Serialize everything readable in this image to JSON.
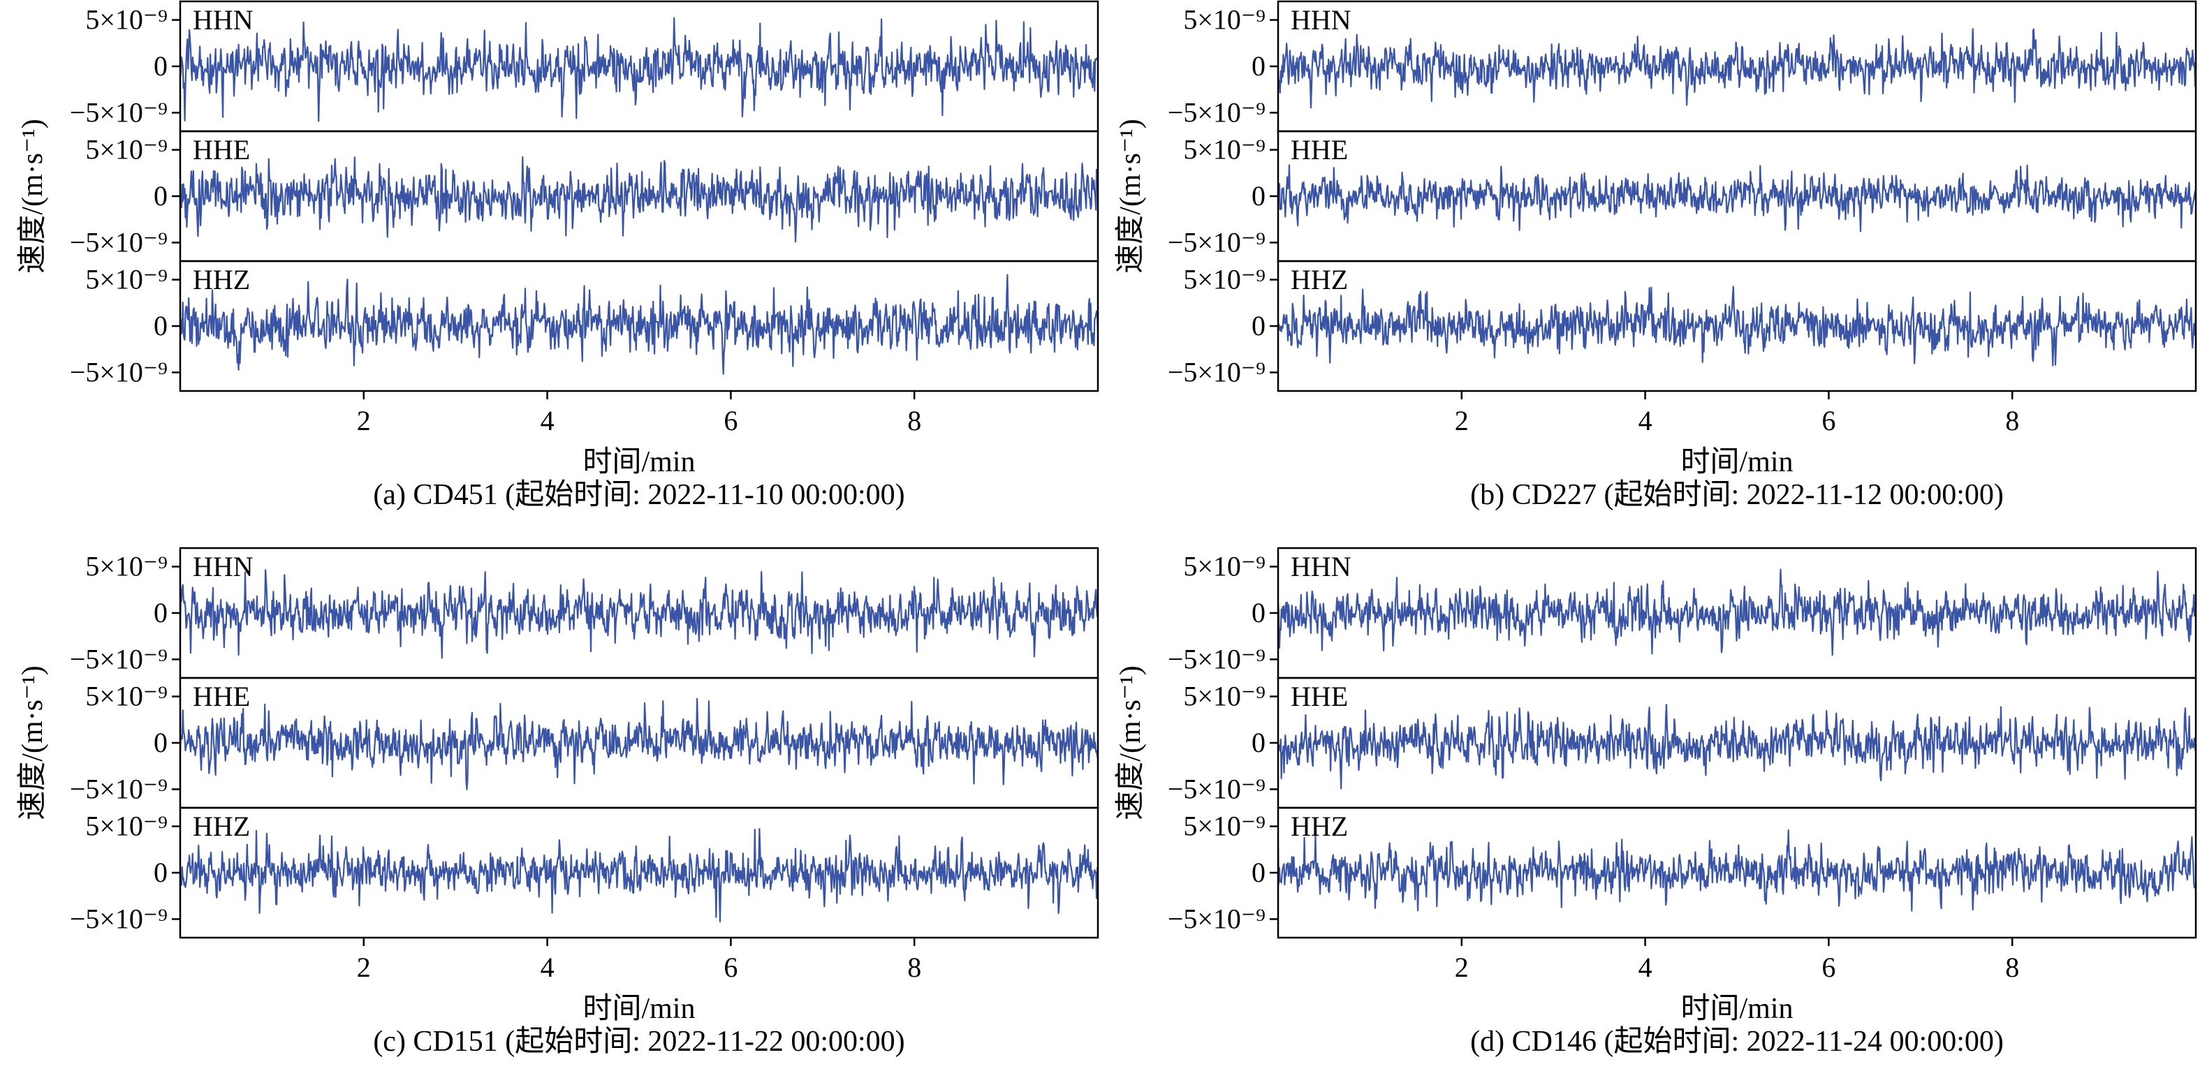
{
  "figure": {
    "shared": {
      "xlabel": "时间/min",
      "ylabel": "速度/(m·s⁻¹)",
      "y_tick_labels": [
        "5×10⁻⁹",
        "0",
        "−5×10⁻⁹"
      ],
      "x_tick_labels": [
        "2",
        "4",
        "6",
        "8"
      ],
      "line_color": "#3a55a6",
      "channels": [
        "HHN",
        "HHE",
        "HHZ"
      ]
    }
  },
  "chart_data": [
    {
      "type": "line",
      "panel": "a",
      "caption": "(a) CD451 (起始时间: 2022-11-10 00:00:00)",
      "station": "CD451",
      "start_time": "2022-11-10 00:00:00",
      "xlabel": "时间/min",
      "ylabel": "速度/(m·s⁻¹)",
      "xlim": [
        0,
        10
      ],
      "x_ticks": [
        2,
        4,
        6,
        8
      ],
      "ylim": [
        -7e-09,
        7e-09
      ],
      "y_ticks": [
        5e-09,
        0,
        -5e-09
      ],
      "series": [
        {
          "name": "HHN",
          "amplitude": 2.5e-09,
          "peak": 7e-09
        },
        {
          "name": "HHE",
          "amplitude": 2.5e-09,
          "peak": 5.5e-09
        },
        {
          "name": "HHZ",
          "amplitude": 2.5e-09,
          "peak": 5.5e-09
        }
      ]
    },
    {
      "type": "line",
      "panel": "b",
      "caption": "(b) CD227 (起始时间: 2022-11-12 00:00:00)",
      "station": "CD227",
      "start_time": "2022-11-12 00:00:00",
      "xlabel": "时间/min",
      "ylabel": "速度/(m·s⁻¹)",
      "xlim": [
        0,
        10
      ],
      "x_ticks": [
        2,
        4,
        6,
        8
      ],
      "ylim": [
        -7e-09,
        7e-09
      ],
      "y_ticks": [
        5e-09,
        0,
        -5e-09
      ],
      "series": [
        {
          "name": "HHN",
          "amplitude": 2.2e-09,
          "peak": 5e-09
        },
        {
          "name": "HHE",
          "amplitude": 2e-09,
          "peak": 4.5e-09
        },
        {
          "name": "HHZ",
          "amplitude": 2.2e-09,
          "peak": 5e-09
        }
      ]
    },
    {
      "type": "line",
      "panel": "c",
      "caption": "(c) CD151 (起始时间: 2022-11-22 00:00:00)",
      "station": "CD151",
      "start_time": "2022-11-22 00:00:00",
      "xlabel": "时间/min",
      "ylabel": "速度/(m·s⁻¹)",
      "xlim": [
        0,
        10
      ],
      "x_ticks": [
        2,
        4,
        6,
        8
      ],
      "ylim": [
        -7e-09,
        7e-09
      ],
      "y_ticks": [
        5e-09,
        0,
        -5e-09
      ],
      "series": [
        {
          "name": "HHN",
          "amplitude": 2.4e-09,
          "peak": 6e-09
        },
        {
          "name": "HHE",
          "amplitude": 2.3e-09,
          "peak": 5.5e-09
        },
        {
          "name": "HHZ",
          "amplitude": 2.2e-09,
          "peak": 6e-09
        }
      ]
    },
    {
      "type": "line",
      "panel": "d",
      "caption": "(d) CD146 (起始时间: 2022-11-24 00:00:00)",
      "station": "CD146",
      "start_time": "2022-11-24 00:00:00",
      "xlabel": "时间/min",
      "ylabel": "速度/(m·s⁻¹)",
      "xlim": [
        0,
        10
      ],
      "x_ticks": [
        2,
        4,
        6,
        8
      ],
      "ylim": [
        -7e-09,
        7e-09
      ],
      "y_ticks": [
        5e-09,
        0,
        -5e-09
      ],
      "series": [
        {
          "name": "HHN",
          "amplitude": 2.3e-09,
          "peak": 5e-09
        },
        {
          "name": "HHE",
          "amplitude": 2.3e-09,
          "peak": 5e-09
        },
        {
          "name": "HHZ",
          "amplitude": 2.3e-09,
          "peak": 5e-09
        }
      ]
    }
  ]
}
